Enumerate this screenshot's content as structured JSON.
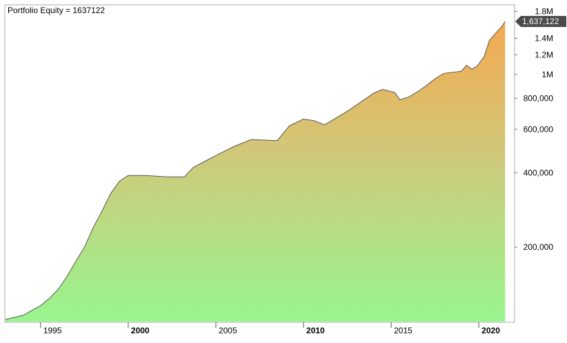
{
  "chart_data": {
    "type": "area",
    "title": "Portfolio Equity = 1637122",
    "xlabel": "",
    "ylabel": "",
    "y_scale": "log",
    "ylim": [
      100000,
      1900000
    ],
    "xlim": [
      1993.0,
      2022.0
    ],
    "grid": false,
    "legend": "none",
    "last_value_label": "1,637,122",
    "x_ticks": [
      {
        "value": 1995,
        "label": "1995",
        "bold": false
      },
      {
        "value": 2000,
        "label": "2000",
        "bold": true
      },
      {
        "value": 2005,
        "label": "2005",
        "bold": false
      },
      {
        "value": 2010,
        "label": "2010",
        "bold": true
      },
      {
        "value": 2015,
        "label": "2015",
        "bold": false
      },
      {
        "value": 2020,
        "label": "2020",
        "bold": true
      }
    ],
    "y_ticks": [
      {
        "value": 200000,
        "label": "200,000"
      },
      {
        "value": 400000,
        "label": "400,000"
      },
      {
        "value": 600000,
        "label": "600,000"
      },
      {
        "value": 800000,
        "label": "800,000"
      },
      {
        "value": 1000000,
        "label": "1M"
      },
      {
        "value": 1200000,
        "label": "1.2M"
      },
      {
        "value": 1400000,
        "label": "1.4M"
      },
      {
        "value": 1800000,
        "label": "1.8M"
      }
    ],
    "series": [
      {
        "x": [
          1993.0,
          1994.0,
          1994.5,
          1995.0,
          1995.5,
          1996.0,
          1996.5,
          1997.0,
          1997.5,
          1998.0,
          1998.5,
          1999.0,
          1999.5,
          2000.0,
          2001.0,
          2002.2,
          2003.2,
          2003.7,
          2004.5,
          2005.0,
          2006.0,
          2007.0,
          2008.5,
          2009.2,
          2010.0,
          2010.6,
          2011.2,
          2011.6,
          2012.5,
          2013.0,
          2014.0,
          2014.5,
          2015.2,
          2015.5,
          2016.0,
          2016.5,
          2017.0,
          2017.5,
          2018.0,
          2019.0,
          2019.3,
          2019.6,
          2019.9,
          2020.3,
          2020.6,
          2021.0,
          2021.3,
          2021.5
        ],
        "values": [
          102000,
          106000,
          111000,
          116000,
          124000,
          135000,
          152000,
          175000,
          200000,
          240000,
          280000,
          330000,
          370000,
          390000,
          390000,
          385000,
          385000,
          420000,
          450000,
          470000,
          510000,
          545000,
          540000,
          620000,
          660000,
          650000,
          625000,
          650000,
          710000,
          750000,
          840000,
          870000,
          845000,
          790000,
          810000,
          850000,
          900000,
          960000,
          1010000,
          1030000,
          1090000,
          1050000,
          1080000,
          1180000,
          1370000,
          1480000,
          1560000,
          1637122
        ]
      }
    ],
    "colors": {
      "fill_top": "#f5a850",
      "fill_mid": "#cfc97a",
      "fill_bottom": "#98f58e",
      "line": "#555555",
      "label_box": "#4a4a4a",
      "frame": "#aaaaaa"
    }
  }
}
